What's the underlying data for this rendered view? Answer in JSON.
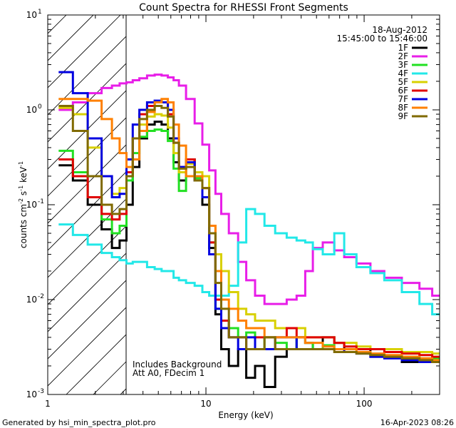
{
  "chart_data": {
    "type": "line",
    "title": "Count Spectra for RHESSI Front Segments",
    "xlabel": "Energy (keV)",
    "ylabel_main": "counts cm",
    "ylabel_sup1": "-2",
    "ylabel_mid": " s",
    "ylabel_sup2": "-1",
    "ylabel_end": " keV",
    "ylabel_sup3": "-1",
    "xscale": "log",
    "yscale": "log",
    "xlim": [
      1,
      300
    ],
    "ylim": [
      0.001,
      10
    ],
    "x_ticks": [
      {
        "value": 1,
        "label": "1"
      },
      {
        "value": 10,
        "label": "10"
      },
      {
        "value": 100,
        "label": "100"
      }
    ],
    "y_ticks": [
      {
        "value": 10,
        "label": "10",
        "sup": "1"
      },
      {
        "value": 1,
        "label": "10",
        "sup": "0"
      },
      {
        "value": 0.1,
        "label": "10",
        "sup": "-1"
      },
      {
        "value": 0.01,
        "label": "10",
        "sup": "-2"
      },
      {
        "value": 0.001,
        "label": "10",
        "sup": "-3"
      }
    ],
    "excluded_range_keV": [
      1,
      3
    ],
    "legend": {
      "position": "top-right",
      "date": "18-Aug-2012",
      "time_range": "15:45:00 to 15:46:00"
    },
    "annotations": [
      "Includes Background",
      "Att A0, FDecim 1"
    ],
    "footer_left": "Generated by hsi_min_spectra_plot.pro",
    "footer_right": "16-Apr-2023 08:26",
    "energy_bins_keV": [
      1.3,
      1.6,
      2.0,
      2.4,
      2.7,
      3.0,
      3.3,
      3.6,
      4.0,
      4.5,
      5.0,
      5.5,
      6.0,
      6.5,
      7.0,
      8.0,
      9.0,
      10,
      11,
      12,
      13,
      15,
      17,
      19,
      22,
      25,
      30,
      35,
      40,
      45,
      50,
      60,
      70,
      80,
      100,
      120,
      150,
      200,
      250,
      290
    ],
    "series": [
      {
        "name": "1F",
        "color": "#000000",
        "values": [
          0.26,
          0.18,
          0.1,
          0.055,
          0.035,
          0.042,
          0.1,
          0.25,
          0.5,
          0.7,
          0.75,
          0.7,
          0.5,
          0.28,
          0.18,
          0.3,
          0.18,
          0.1,
          0.035,
          0.007,
          0.003,
          0.002,
          0.003,
          0.0015,
          0.002,
          0.0012,
          0.0025,
          0.003,
          0.004,
          0.0035,
          0.003,
          0.004,
          0.0035,
          0.003,
          0.003,
          0.0025,
          0.0025,
          0.0022,
          0.0023,
          0.0022
        ]
      },
      {
        "name": "2F",
        "color": "#e81ee8",
        "values": [
          1.0,
          1.2,
          1.5,
          1.7,
          1.8,
          1.9,
          1.95,
          2.05,
          2.15,
          2.3,
          2.35,
          2.3,
          2.2,
          2.05,
          1.8,
          1.3,
          0.72,
          0.43,
          0.23,
          0.13,
          0.08,
          0.05,
          0.025,
          0.016,
          0.011,
          0.009,
          0.009,
          0.01,
          0.011,
          0.02,
          0.035,
          0.04,
          0.033,
          0.028,
          0.024,
          0.02,
          0.017,
          0.015,
          0.013,
          0.011
        ]
      },
      {
        "name": "3F",
        "color": "#22e022",
        "values": [
          0.37,
          0.22,
          0.12,
          0.07,
          0.05,
          0.06,
          0.18,
          0.35,
          0.52,
          0.6,
          0.62,
          0.6,
          0.47,
          0.24,
          0.14,
          0.3,
          0.19,
          0.12,
          0.04,
          0.008,
          0.006,
          0.005,
          0.004,
          0.0045,
          0.003,
          0.004,
          0.0035,
          0.003,
          0.004,
          0.0035,
          0.003,
          0.0033,
          0.003,
          0.0028,
          0.0028,
          0.0026,
          0.0025,
          0.0025,
          0.0024,
          0.0024
        ]
      },
      {
        "name": "4F",
        "color": "#22e8e8",
        "values": [
          0.062,
          0.048,
          0.038,
          0.031,
          0.028,
          0.026,
          0.024,
          0.025,
          0.025,
          0.022,
          0.021,
          0.02,
          0.02,
          0.017,
          0.016,
          0.015,
          0.014,
          0.012,
          0.011,
          0.011,
          0.011,
          0.014,
          0.04,
          0.09,
          0.08,
          0.06,
          0.05,
          0.045,
          0.042,
          0.04,
          0.034,
          0.03,
          0.05,
          0.03,
          0.022,
          0.019,
          0.016,
          0.012,
          0.009,
          0.007
        ]
      },
      {
        "name": "5F",
        "color": "#d8d000",
        "values": [
          1.05,
          0.9,
          0.4,
          0.2,
          0.13,
          0.15,
          0.3,
          0.5,
          0.7,
          0.85,
          0.9,
          0.87,
          0.65,
          0.35,
          0.22,
          0.27,
          0.22,
          0.2,
          0.06,
          0.03,
          0.02,
          0.012,
          0.008,
          0.007,
          0.006,
          0.006,
          0.005,
          0.005,
          0.005,
          0.004,
          0.004,
          0.004,
          0.0035,
          0.0035,
          0.0032,
          0.003,
          0.003,
          0.0028,
          0.0028,
          0.0027
        ]
      },
      {
        "name": "6F",
        "color": "#e00000",
        "values": [
          0.3,
          0.2,
          0.12,
          0.08,
          0.07,
          0.08,
          0.22,
          0.5,
          0.9,
          1.1,
          1.2,
          1.2,
          0.9,
          0.45,
          0.25,
          0.3,
          0.2,
          0.15,
          0.04,
          0.01,
          0.006,
          0.004,
          0.004,
          0.003,
          0.004,
          0.004,
          0.004,
          0.005,
          0.004,
          0.004,
          0.004,
          0.004,
          0.0035,
          0.0032,
          0.003,
          0.003,
          0.0028,
          0.0027,
          0.0026,
          0.0025
        ]
      },
      {
        "name": "7F",
        "color": "#0000e0",
        "values": [
          2.5,
          1.5,
          0.5,
          0.2,
          0.12,
          0.13,
          0.3,
          0.7,
          1.0,
          1.2,
          1.25,
          1.2,
          1.0,
          0.5,
          0.25,
          0.28,
          0.18,
          0.12,
          0.03,
          0.008,
          0.005,
          0.004,
          0.003,
          0.004,
          0.003,
          0.003,
          0.004,
          0.004,
          0.003,
          0.003,
          0.003,
          0.003,
          0.003,
          0.0028,
          0.0027,
          0.0025,
          0.0024,
          0.0023,
          0.0022,
          0.0022
        ]
      },
      {
        "name": "8F",
        "color": "#ff8000",
        "values": [
          1.3,
          1.3,
          1.25,
          0.8,
          0.5,
          0.35,
          0.25,
          0.3,
          0.6,
          0.95,
          1.2,
          1.3,
          1.2,
          0.7,
          0.42,
          0.2,
          0.2,
          0.15,
          0.06,
          0.02,
          0.01,
          0.008,
          0.006,
          0.005,
          0.005,
          0.004,
          0.004,
          0.004,
          0.004,
          0.0035,
          0.0035,
          0.0032,
          0.003,
          0.003,
          0.0028,
          0.0027,
          0.0026,
          0.0025,
          0.0024,
          0.0023
        ]
      },
      {
        "name": "9F",
        "color": "#806a00",
        "values": [
          1.1,
          0.6,
          0.2,
          0.1,
          0.08,
          0.09,
          0.2,
          0.5,
          0.8,
          1.0,
          1.1,
          1.05,
          0.85,
          0.45,
          0.24,
          0.25,
          0.18,
          0.15,
          0.05,
          0.015,
          0.008,
          0.004,
          0.004,
          0.003,
          0.003,
          0.004,
          0.003,
          0.003,
          0.003,
          0.003,
          0.003,
          0.003,
          0.0028,
          0.0028,
          0.0027,
          0.0026,
          0.0025,
          0.0024,
          0.0023,
          0.0022
        ]
      }
    ]
  }
}
